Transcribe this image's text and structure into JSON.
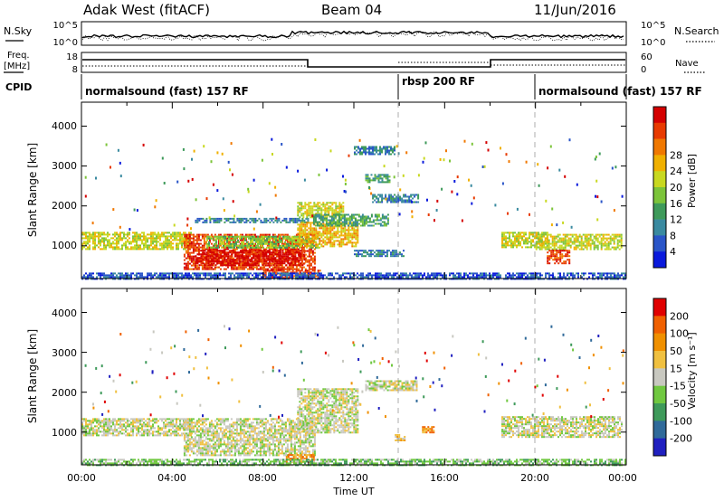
{
  "header": {
    "station": "Adak West (fitACF)",
    "beam": "Beam 04",
    "date": "11/Jun/2016"
  },
  "sky_panel": {
    "left_label": "N.Sky",
    "right_label": "N.Search",
    "left_ticks": [
      "10^5",
      "10^0"
    ],
    "right_ticks": [
      "10^5",
      "10^0"
    ]
  },
  "freq_panel": {
    "left_label": "Freq.",
    "left_unit": "[MHz]",
    "right_label": "Nave",
    "left_ticks": [
      "18",
      "8"
    ],
    "right_ticks": [
      "60",
      "0"
    ]
  },
  "cpid": {
    "label": "CPID",
    "segments": [
      {
        "name": "normalsound (fast) 157 RF",
        "start": 0,
        "end": 14
      },
      {
        "name": "rbsp 200 RF",
        "start": 14,
        "end": 20
      },
      {
        "name": "normalsound (fast) 157 RF",
        "start": 20,
        "end": 24
      }
    ]
  },
  "chart_data": [
    {
      "type": "heatmap",
      "quantity": "power",
      "ylabel": "Slant Range [km]",
      "ylim": [
        180,
        4600
      ],
      "yticks": [
        "1000",
        "2000",
        "3000",
        "4000"
      ],
      "xlabel": "Time UT",
      "xlim": [
        0,
        24
      ],
      "colorbar": {
        "label": "Power [dB]",
        "ticks": [
          "4",
          "8",
          "12",
          "16",
          "20",
          "24",
          "28"
        ],
        "colors": [
          "#0a1adc",
          "#2a55c8",
          "#3a8aa0",
          "#3e9a5a",
          "#7cc43a",
          "#c8d820",
          "#f0b000",
          "#f07800",
          "#e83a00",
          "#d40000"
        ]
      },
      "bands": [
        {
          "t0": 0.0,
          "t1": 4.8,
          "r0": 900,
          "r1": 1350,
          "level": 5
        },
        {
          "t0": 4.5,
          "t1": 10.3,
          "r0": 400,
          "r1": 1300,
          "level": 8
        },
        {
          "t0": 5.0,
          "t1": 9.8,
          "r0": 500,
          "r1": 900,
          "level": 9
        },
        {
          "t0": 5.5,
          "t1": 10.5,
          "r0": 950,
          "r1": 1250,
          "level": 4
        },
        {
          "t0": 8.0,
          "t1": 10.5,
          "r0": 200,
          "r1": 400,
          "level": 8
        },
        {
          "t0": 5.0,
          "t1": 10.0,
          "r0": 1580,
          "r1": 1700,
          "level": 2
        },
        {
          "t0": 9.5,
          "t1": 11.5,
          "r0": 1700,
          "r1": 2100,
          "level": 5
        },
        {
          "t0": 9.5,
          "t1": 12.2,
          "r0": 1000,
          "r1": 1600,
          "level": 6
        },
        {
          "t0": 10.2,
          "t1": 13.5,
          "r0": 1500,
          "r1": 1800,
          "level": 3
        },
        {
          "t0": 12.8,
          "t1": 14.8,
          "r0": 2100,
          "r1": 2300,
          "level": 2
        },
        {
          "t0": 12.5,
          "t1": 13.6,
          "r0": 2600,
          "r1": 2800,
          "level": 3
        },
        {
          "t0": 12.0,
          "t1": 13.8,
          "r0": 3300,
          "r1": 3500,
          "level": 2
        },
        {
          "t0": 12.0,
          "t1": 14.2,
          "r0": 750,
          "r1": 900,
          "level": 2
        },
        {
          "t0": 18.5,
          "t1": 20.5,
          "r0": 950,
          "r1": 1350,
          "level": 5
        },
        {
          "t0": 20.0,
          "t1": 23.8,
          "r0": 900,
          "r1": 1300,
          "level": 5
        },
        {
          "t0": 20.5,
          "t1": 21.5,
          "r0": 550,
          "r1": 900,
          "level": 8
        },
        {
          "t0": 0.0,
          "t1": 24.0,
          "r0": 180,
          "r1": 330,
          "level": 1
        }
      ]
    },
    {
      "type": "heatmap",
      "quantity": "velocity",
      "ylabel": "Slant Range [km]",
      "ylim": [
        180,
        4600
      ],
      "yticks": [
        "1000",
        "2000",
        "3000",
        "4000"
      ],
      "xlabel": "Time UT",
      "xlim": [
        0,
        24
      ],
      "xticks": [
        "00:00",
        "04:00",
        "08:00",
        "12:00",
        "16:00",
        "20:00",
        "00:00"
      ],
      "colorbar": {
        "label": "Velocity [m s⁻¹]",
        "ticks": [
          "200",
          "100",
          "50",
          "15",
          "-15",
          "-50",
          "-100",
          "-200"
        ],
        "colors": [
          "#2020c0",
          "#306a9a",
          "#3e9a5a",
          "#70c840",
          "#c8c8c0",
          "#f0c040",
          "#f09000",
          "#f06000",
          "#e00000"
        ]
      },
      "bands": [
        {
          "t0": 0.0,
          "t1": 4.8,
          "r0": 900,
          "r1": 1350,
          "level": 4
        },
        {
          "t0": 4.5,
          "t1": 10.3,
          "r0": 400,
          "r1": 1350,
          "level": 4
        },
        {
          "t0": 9.5,
          "t1": 12.2,
          "r0": 1000,
          "r1": 2100,
          "level": 4
        },
        {
          "t0": 12.5,
          "t1": 14.8,
          "r0": 2050,
          "r1": 2300,
          "level": 4
        },
        {
          "t0": 18.5,
          "t1": 23.8,
          "r0": 900,
          "r1": 1400,
          "level": 4
        },
        {
          "t0": 9.0,
          "t1": 10.2,
          "r0": 250,
          "r1": 450,
          "level": 6
        },
        {
          "t0": 15.0,
          "t1": 15.5,
          "r0": 1000,
          "r1": 1150,
          "level": 6
        },
        {
          "t0": 13.8,
          "t1": 14.2,
          "r0": 800,
          "r1": 950,
          "level": 5
        },
        {
          "t0": 0.0,
          "t1": 24.0,
          "r0": 180,
          "r1": 330,
          "level": 3
        }
      ]
    }
  ]
}
